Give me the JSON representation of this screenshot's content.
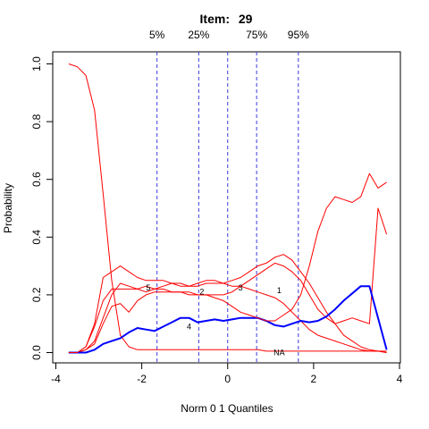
{
  "chart_data": {
    "type": "line",
    "title_prefix": "Item:",
    "title_number": "29",
    "xlabel": "Norm 0 1 Quantiles",
    "ylabel": "Probability",
    "xlim": [
      -4,
      4
    ],
    "ylim": [
      0,
      1
    ],
    "x_ticks": [
      -4,
      -2,
      0,
      2,
      4
    ],
    "y_ticks": [
      0.0,
      0.2,
      0.4,
      0.6,
      0.8,
      1.0
    ],
    "x_tick_labels": [
      "-4",
      "-2",
      "0",
      "2",
      "4"
    ],
    "y_tick_labels": [
      "0.0",
      "0.2",
      "0.4",
      "0.6",
      "0.8",
      "1.0"
    ],
    "quantiles": [
      {
        "label": "5%",
        "x": -1.645
      },
      {
        "label": "25%",
        "x": -0.674
      },
      {
        "label": "",
        "x": 0
      },
      {
        "label": "75%",
        "x": 0.674
      },
      {
        "label": "95%",
        "x": 1.645
      }
    ],
    "series": [
      {
        "label": "NA",
        "color": "#ff0000",
        "label_at": [
          1.2,
          0.0
        ],
        "x": [
          -3.7,
          -3.5,
          -3.3,
          -3.1,
          -2.9,
          -2.7,
          -2.5,
          -2.3,
          -2.1,
          -1.9,
          -1.7,
          -1.5,
          -1.3,
          -1.1,
          -0.9,
          -0.7,
          -0.5,
          -0.3,
          -0.1,
          0.1,
          0.3,
          0.5,
          0.7,
          0.9,
          1.1,
          1.3,
          1.5,
          1.7,
          1.9,
          2.1,
          2.3,
          2.5,
          2.7,
          2.9,
          3.1,
          3.3,
          3.5,
          3.7
        ],
        "y": [
          1.0,
          0.99,
          0.96,
          0.84,
          0.55,
          0.25,
          0.06,
          0.02,
          0.01,
          0.01,
          0.01,
          0.01,
          0.01,
          0.01,
          0.01,
          0.01,
          0.01,
          0.01,
          0.01,
          0.01,
          0.01,
          0.01,
          0.01,
          0.005,
          0.005,
          0.005,
          0.005,
          0.005,
          0.005,
          0.005,
          0.005,
          0.005,
          0.005,
          0.005,
          0.005,
          0.005,
          0.005,
          0.005
        ]
      },
      {
        "label": "1",
        "color": "#ff0000",
        "label_at": [
          1.2,
          0.215
        ],
        "x": [
          -3.7,
          -3.5,
          -3.3,
          -3.1,
          -2.9,
          -2.7,
          -2.5,
          -2.3,
          -2.1,
          -1.9,
          -1.7,
          -1.5,
          -1.3,
          -1.1,
          -0.9,
          -0.7,
          -0.5,
          -0.3,
          -0.1,
          0.1,
          0.3,
          0.5,
          0.7,
          0.9,
          1.1,
          1.3,
          1.5,
          1.7,
          1.9,
          2.1,
          2.3,
          2.5,
          2.7,
          2.9,
          3.1,
          3.3,
          3.5,
          3.7
        ],
        "y": [
          0.0,
          0.0,
          0.02,
          0.1,
          0.26,
          0.28,
          0.3,
          0.28,
          0.26,
          0.25,
          0.25,
          0.25,
          0.24,
          0.23,
          0.23,
          0.24,
          0.25,
          0.25,
          0.24,
          0.23,
          0.23,
          0.22,
          0.21,
          0.2,
          0.19,
          0.17,
          0.14,
          0.11,
          0.08,
          0.06,
          0.05,
          0.04,
          0.03,
          0.02,
          0.01,
          0.005,
          0.005,
          0.0
        ]
      },
      {
        "label": "2",
        "color": "#ff0000",
        "label_at": [
          -0.6,
          0.21
        ],
        "x": [
          -3.7,
          -3.5,
          -3.3,
          -3.1,
          -2.9,
          -2.7,
          -2.5,
          -2.3,
          -2.1,
          -1.9,
          -1.7,
          -1.5,
          -1.3,
          -1.1,
          -0.9,
          -0.7,
          -0.5,
          -0.3,
          -0.1,
          0.1,
          0.3,
          0.5,
          0.7,
          0.9,
          1.1,
          1.3,
          1.5,
          1.7,
          1.9,
          2.1,
          2.3,
          2.5,
          2.7,
          2.9,
          3.1,
          3.3,
          3.5,
          3.7
        ],
        "y": [
          0.0,
          0.0,
          0.01,
          0.04,
          0.12,
          0.2,
          0.24,
          0.23,
          0.22,
          0.21,
          0.22,
          0.23,
          0.24,
          0.24,
          0.23,
          0.23,
          0.24,
          0.24,
          0.24,
          0.25,
          0.26,
          0.28,
          0.3,
          0.31,
          0.33,
          0.34,
          0.32,
          0.28,
          0.24,
          0.19,
          0.14,
          0.1,
          0.06,
          0.04,
          0.02,
          0.01,
          0.005,
          0.0
        ]
      },
      {
        "label": "3",
        "color": "#ff0000",
        "label_at": [
          0.3,
          0.225
        ],
        "x": [
          -3.7,
          -3.5,
          -3.3,
          -3.1,
          -2.9,
          -2.7,
          -2.5,
          -2.3,
          -2.1,
          -1.9,
          -1.7,
          -1.5,
          -1.3,
          -1.1,
          -0.9,
          -0.7,
          -0.5,
          -0.3,
          -0.1,
          0.1,
          0.3,
          0.5,
          0.7,
          0.9,
          1.1,
          1.3,
          1.5,
          1.7,
          1.9,
          2.1,
          2.3,
          2.5,
          2.7,
          2.9,
          3.1,
          3.3,
          3.5,
          3.7
        ],
        "y": [
          0.0,
          0.0,
          0.01,
          0.03,
          0.1,
          0.16,
          0.17,
          0.14,
          0.18,
          0.2,
          0.21,
          0.21,
          0.21,
          0.21,
          0.21,
          0.2,
          0.2,
          0.2,
          0.2,
          0.21,
          0.23,
          0.25,
          0.27,
          0.29,
          0.31,
          0.3,
          0.28,
          0.25,
          0.2,
          0.15,
          0.12,
          0.1,
          0.11,
          0.12,
          0.11,
          0.1,
          0.5,
          0.41
        ]
      },
      {
        "label": "4",
        "color": "#0000ff",
        "label_at": [
          -0.9,
          0.09
        ],
        "x": [
          -3.7,
          -3.5,
          -3.3,
          -3.1,
          -2.9,
          -2.7,
          -2.5,
          -2.3,
          -2.1,
          -1.9,
          -1.7,
          -1.5,
          -1.3,
          -1.1,
          -0.9,
          -0.7,
          -0.5,
          -0.3,
          -0.1,
          0.1,
          0.3,
          0.5,
          0.7,
          0.9,
          1.1,
          1.3,
          1.5,
          1.7,
          1.9,
          2.1,
          2.3,
          2.5,
          2.7,
          2.9,
          3.1,
          3.3,
          3.5,
          3.7
        ],
        "y": [
          0.0,
          0.0,
          0.0,
          0.01,
          0.03,
          0.04,
          0.05,
          0.07,
          0.085,
          0.08,
          0.075,
          0.09,
          0.105,
          0.12,
          0.12,
          0.105,
          0.11,
          0.115,
          0.11,
          0.115,
          0.12,
          0.12,
          0.12,
          0.11,
          0.095,
          0.09,
          0.1,
          0.11,
          0.105,
          0.11,
          0.125,
          0.15,
          0.18,
          0.205,
          0.23,
          0.23,
          0.12,
          0.01
        ]
      },
      {
        "label": "5",
        "color": "#ff0000",
        "label_at": [
          -1.85,
          0.225
        ],
        "x": [
          -3.7,
          -3.5,
          -3.3,
          -3.1,
          -2.9,
          -2.7,
          -2.5,
          -2.3,
          -2.1,
          -1.9,
          -1.7,
          -1.5,
          -1.3,
          -1.1,
          -0.9,
          -0.7,
          -0.5,
          -0.3,
          -0.1,
          0.1,
          0.3,
          0.5,
          0.7,
          0.9,
          1.1,
          1.3,
          1.5,
          1.7,
          1.9,
          2.1,
          2.3,
          2.5,
          2.7,
          2.9,
          3.1,
          3.3,
          3.5,
          3.7
        ],
        "y": [
          0.0,
          0.0,
          0.02,
          0.09,
          0.18,
          0.22,
          0.22,
          0.22,
          0.22,
          0.23,
          0.22,
          0.22,
          0.21,
          0.21,
          0.2,
          0.2,
          0.2,
          0.19,
          0.18,
          0.16,
          0.14,
          0.13,
          0.12,
          0.11,
          0.11,
          0.13,
          0.15,
          0.2,
          0.3,
          0.42,
          0.5,
          0.54,
          0.53,
          0.52,
          0.54,
          0.62,
          0.57,
          0.59
        ]
      }
    ]
  }
}
